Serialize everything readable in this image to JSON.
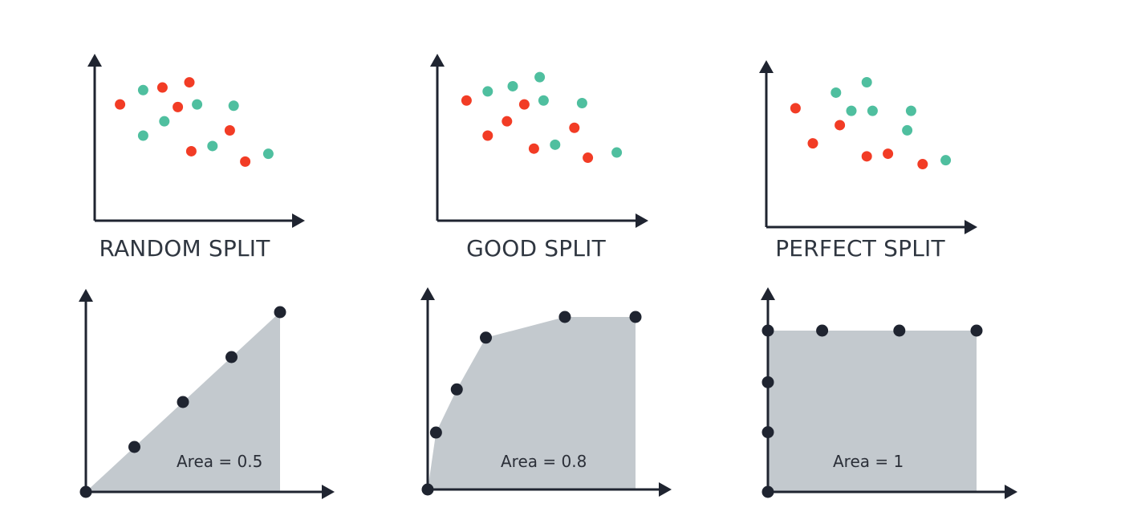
{
  "colors": {
    "axis": "#1f2430",
    "class_red": "#f23c25",
    "class_green": "#4fbf9f",
    "area_fill": "#c3c9ce",
    "roc_point": "#1f2430",
    "label_text": "#2f3640"
  },
  "chart_data": [
    {
      "type": "scatter",
      "title": "RANDOM SPLIT",
      "xlabel": "",
      "ylabel": "",
      "xlim": [
        0,
        10
      ],
      "ylim": [
        0,
        10
      ],
      "series": [
        {
          "color": "red",
          "points": [
            [
              0.9,
              7.4
            ],
            [
              3.1,
              8.7
            ],
            [
              4.5,
              9.1
            ],
            [
              3.9,
              7.2
            ],
            [
              6.6,
              5.4
            ],
            [
              4.6,
              3.8
            ],
            [
              7.4,
              3.0
            ]
          ]
        },
        {
          "color": "green",
          "points": [
            [
              2.1,
              8.5
            ],
            [
              4.9,
              7.4
            ],
            [
              6.8,
              7.3
            ],
            [
              3.2,
              6.1
            ],
            [
              2.1,
              5.0
            ],
            [
              5.7,
              4.2
            ],
            [
              8.6,
              3.6
            ]
          ]
        }
      ]
    },
    {
      "type": "scatter",
      "title": "GOOD SPLIT",
      "xlabel": "",
      "ylabel": "",
      "xlim": [
        0,
        10
      ],
      "ylim": [
        0,
        10
      ],
      "series": [
        {
          "color": "red",
          "points": [
            [
              1.1,
              7.7
            ],
            [
              4.1,
              7.4
            ],
            [
              3.2,
              6.1
            ],
            [
              6.7,
              5.6
            ],
            [
              2.2,
              5.0
            ],
            [
              4.6,
              4.0
            ],
            [
              7.4,
              3.3
            ]
          ]
        },
        {
          "color": "green",
          "points": [
            [
              2.2,
              8.4
            ],
            [
              3.5,
              8.8
            ],
            [
              4.9,
              9.5
            ],
            [
              5.1,
              7.7
            ],
            [
              7.1,
              7.5
            ],
            [
              5.7,
              4.3
            ],
            [
              8.9,
              3.7
            ]
          ]
        }
      ]
    },
    {
      "type": "scatter",
      "title": "PERFECT SPLIT",
      "xlabel": "",
      "ylabel": "",
      "xlim": [
        0,
        10
      ],
      "ylim": [
        0,
        10
      ],
      "series": [
        {
          "color": "red",
          "points": [
            [
              1.1,
              7.6
            ],
            [
              3.4,
              6.3
            ],
            [
              2.0,
              4.9
            ],
            [
              4.8,
              3.9
            ],
            [
              5.9,
              4.1
            ],
            [
              7.7,
              3.3
            ]
          ]
        },
        {
          "color": "green",
          "points": [
            [
              3.2,
              8.8
            ],
            [
              4.8,
              9.6
            ],
            [
              4.0,
              7.4
            ],
            [
              5.1,
              7.4
            ],
            [
              7.1,
              7.4
            ],
            [
              6.9,
              5.9
            ],
            [
              8.9,
              3.6
            ]
          ]
        }
      ]
    },
    {
      "type": "area",
      "title": "",
      "xlabel": "",
      "ylabel": "",
      "xlim": [
        0,
        1
      ],
      "ylim": [
        0,
        1
      ],
      "points": [
        [
          0,
          0
        ],
        [
          0.25,
          0.25
        ],
        [
          0.5,
          0.5
        ],
        [
          0.75,
          0.75
        ],
        [
          1,
          1
        ]
      ],
      "annotation": "Area = 0.5"
    },
    {
      "type": "area",
      "title": "",
      "xlabel": "",
      "ylabel": "",
      "xlim": [
        0,
        1
      ],
      "ylim": [
        0,
        1
      ],
      "points": [
        [
          0,
          0
        ],
        [
          0.04,
          0.33
        ],
        [
          0.14,
          0.58
        ],
        [
          0.28,
          0.88
        ],
        [
          0.66,
          1.0
        ],
        [
          1,
          1.0
        ]
      ],
      "annotation": "Area = 0.8"
    },
    {
      "type": "area",
      "title": "",
      "xlabel": "",
      "ylabel": "",
      "xlim": [
        0,
        1
      ],
      "ylim": [
        0,
        1
      ],
      "points": [
        [
          0,
          0
        ],
        [
          0,
          0.37
        ],
        [
          0,
          0.68
        ],
        [
          0,
          1
        ],
        [
          0.26,
          1
        ],
        [
          0.63,
          1
        ],
        [
          1,
          1
        ]
      ],
      "annotation": "Area = 1"
    }
  ]
}
